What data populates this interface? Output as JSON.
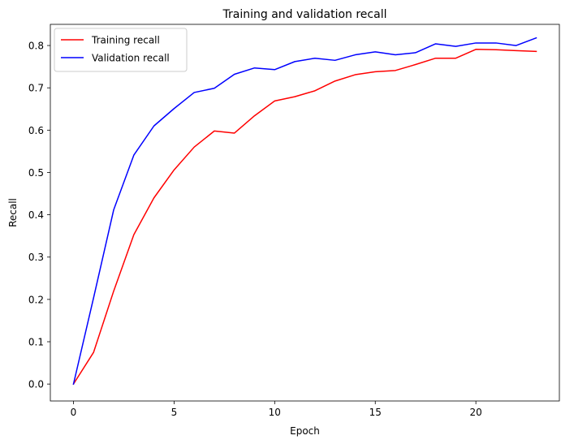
{
  "chart_data": {
    "type": "line",
    "title": "Training and validation recall",
    "xlabel": "Epoch",
    "ylabel": "Recall",
    "xlim": [
      -1.15,
      24.15
    ],
    "ylim": [
      -0.04,
      0.85
    ],
    "x_ticks": [
      0,
      5,
      10,
      15,
      20
    ],
    "y_ticks": [
      0.0,
      0.1,
      0.2,
      0.3,
      0.4,
      0.5,
      0.6,
      0.7,
      0.8
    ],
    "x_tick_labels": [
      "0",
      "5",
      "10",
      "15",
      "20"
    ],
    "y_tick_labels": [
      "0.0",
      "0.1",
      "0.2",
      "0.3",
      "0.4",
      "0.5",
      "0.6",
      "0.7",
      "0.8"
    ],
    "grid": false,
    "legend_position": "top-left",
    "x": [
      0,
      1,
      2,
      3,
      4,
      5,
      6,
      7,
      8,
      9,
      10,
      11,
      12,
      13,
      14,
      15,
      16,
      17,
      18,
      19,
      20,
      21,
      22,
      23
    ],
    "series": [
      {
        "name": "Training recall",
        "color": "#ff0000",
        "values": [
          0.0,
          0.075,
          0.22,
          0.353,
          0.44,
          0.506,
          0.56,
          0.598,
          0.593,
          0.634,
          0.669,
          0.679,
          0.693,
          0.716,
          0.731,
          0.738,
          0.741,
          0.755,
          0.77,
          0.77,
          0.791,
          0.79,
          0.788,
          0.786
        ]
      },
      {
        "name": "Validation recall",
        "color": "#0000ff",
        "values": [
          0.0,
          0.204,
          0.412,
          0.541,
          0.61,
          0.651,
          0.689,
          0.699,
          0.732,
          0.747,
          0.743,
          0.762,
          0.77,
          0.765,
          0.778,
          0.785,
          0.778,
          0.783,
          0.804,
          0.798,
          0.806,
          0.806,
          0.8,
          0.818
        ]
      }
    ]
  }
}
